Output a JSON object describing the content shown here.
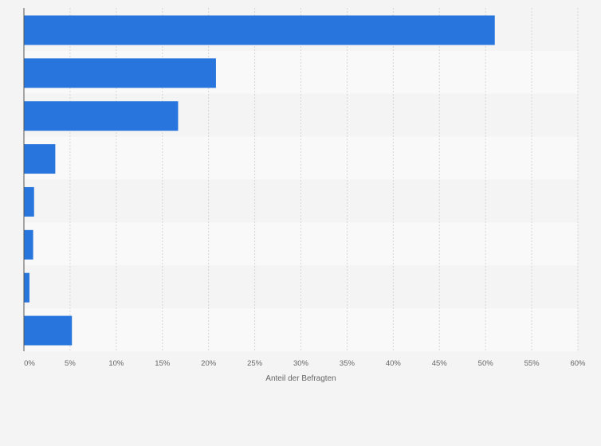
{
  "chart_data": {
    "type": "bar",
    "orientation": "horizontal",
    "categories": [
      "",
      "",
      "",
      "",
      "",
      "",
      "",
      ""
    ],
    "values": [
      51,
      20.8,
      16.7,
      3.4,
      1.1,
      1.0,
      0.6,
      5.2
    ],
    "xlabel": "Anteil der Befragten",
    "ylabel": "",
    "xlim": [
      0,
      60
    ],
    "ticks": [
      "0%",
      "5%",
      "10%",
      "15%",
      "20%",
      "25%",
      "30%",
      "35%",
      "40%",
      "45%",
      "50%",
      "55%",
      "60%"
    ],
    "grid": true,
    "bar_color": "#2876dd",
    "band_colors": [
      "#f4f4f4",
      "#f9f9f9"
    ]
  }
}
